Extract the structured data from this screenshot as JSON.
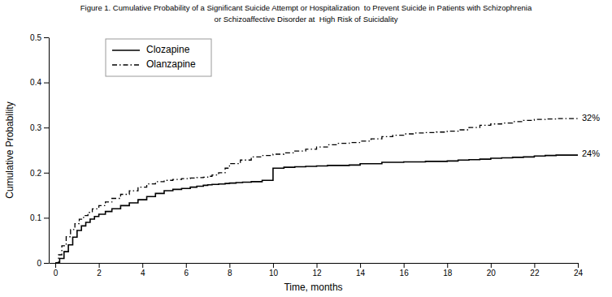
{
  "chart_data": {
    "type": "step",
    "title": "Figure 1. Cumulative Probability of a Significant Suicide Attempt or Hospitalization  to Prevent Suicide in Patients with Schizophrenia",
    "subtitle": "or Schizoaffective Disorder at  High Risk of Suicidality",
    "xlabel": "Time, months",
    "ylabel": "Cumulative Probability",
    "xlim": [
      -0.3,
      24
    ],
    "ylim": [
      0,
      0.5
    ],
    "xticks": [
      0,
      2,
      4,
      6,
      8,
      10,
      12,
      14,
      16,
      18,
      20,
      22,
      24
    ],
    "yticks": [
      0,
      0.1,
      0.2,
      0.3,
      0.4,
      0.5
    ],
    "grid": false,
    "legend": "upper left",
    "series": [
      {
        "name": "Clozapine",
        "color": "#000000",
        "line_style": "solid",
        "x": [
          0,
          0.2,
          0.4,
          0.6,
          0.8,
          1.0,
          1.2,
          1.4,
          1.6,
          1.8,
          2.0,
          2.3,
          2.6,
          3.0,
          3.4,
          3.8,
          4.2,
          4.6,
          5.0,
          5.4,
          5.8,
          6.2,
          6.5,
          6.8,
          7.0,
          7.2,
          7.5,
          7.8,
          8.0,
          8.3,
          8.6,
          9.0,
          9.5,
          10.0,
          10.5,
          11.0,
          11.5,
          12.0,
          12.5,
          13.0,
          13.5,
          14.0,
          14.5,
          15.0,
          15.5,
          16.0,
          16.5,
          17.0,
          17.5,
          18.0,
          18.5,
          19.0,
          19.5,
          20.0,
          20.5,
          21.0,
          21.5,
          22.0,
          22.5,
          23.0,
          23.5,
          24.0
        ],
        "values": [
          0,
          0.01,
          0.025,
          0.04,
          0.057,
          0.072,
          0.082,
          0.09,
          0.097,
          0.103,
          0.108,
          0.114,
          0.12,
          0.127,
          0.133,
          0.14,
          0.147,
          0.154,
          0.16,
          0.163,
          0.165,
          0.168,
          0.17,
          0.172,
          0.173,
          0.174,
          0.175,
          0.176,
          0.177,
          0.178,
          0.179,
          0.18,
          0.183,
          0.21,
          0.212,
          0.213,
          0.214,
          0.215,
          0.216,
          0.216,
          0.217,
          0.22,
          0.22,
          0.223,
          0.223,
          0.224,
          0.224,
          0.225,
          0.225,
          0.226,
          0.228,
          0.229,
          0.23,
          0.232,
          0.233,
          0.234,
          0.235,
          0.237,
          0.238,
          0.239,
          0.239,
          0.24
        ]
      },
      {
        "name": "Olanzapine",
        "color": "#000000",
        "line_style": "dashdot",
        "x": [
          0,
          0.15,
          0.3,
          0.5,
          0.7,
          0.9,
          1.1,
          1.3,
          1.5,
          1.7,
          2.0,
          2.3,
          2.6,
          3.0,
          3.4,
          3.8,
          4.2,
          4.6,
          5.0,
          5.4,
          5.8,
          6.2,
          6.5,
          6.8,
          7.0,
          7.2,
          7.5,
          7.8,
          8.0,
          8.5,
          9.0,
          9.5,
          10.0,
          10.5,
          11.0,
          11.5,
          12.0,
          12.5,
          13.0,
          13.5,
          14.0,
          14.5,
          15.0,
          15.5,
          16.0,
          16.5,
          17.0,
          17.5,
          18.0,
          18.5,
          19.0,
          19.5,
          20.0,
          20.5,
          21.0,
          21.5,
          22.0,
          22.5,
          23.0,
          23.5,
          24.0
        ],
        "values": [
          0,
          0.018,
          0.038,
          0.058,
          0.074,
          0.087,
          0.097,
          0.105,
          0.112,
          0.12,
          0.127,
          0.135,
          0.143,
          0.152,
          0.16,
          0.168,
          0.175,
          0.18,
          0.183,
          0.185,
          0.187,
          0.188,
          0.189,
          0.19,
          0.192,
          0.195,
          0.2,
          0.21,
          0.22,
          0.228,
          0.235,
          0.238,
          0.241,
          0.244,
          0.248,
          0.252,
          0.257,
          0.262,
          0.265,
          0.267,
          0.27,
          0.275,
          0.28,
          0.283,
          0.286,
          0.288,
          0.289,
          0.29,
          0.292,
          0.295,
          0.3,
          0.305,
          0.308,
          0.31,
          0.313,
          0.316,
          0.318,
          0.319,
          0.32,
          0.32,
          0.32
        ]
      }
    ],
    "annotations": [
      {
        "text": "24%",
        "x": 24,
        "y": 0.24
      },
      {
        "text": "32%",
        "x": 24,
        "y": 0.32
      }
    ]
  }
}
